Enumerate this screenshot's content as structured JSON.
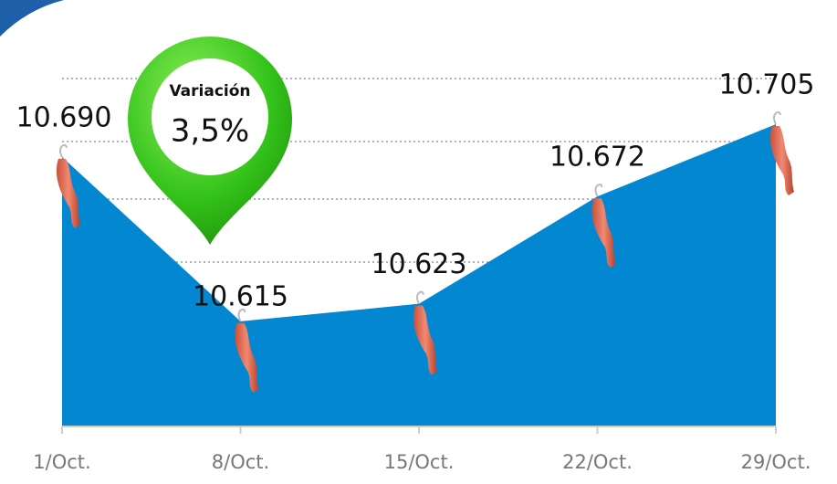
{
  "chart_data": {
    "type": "area",
    "categories": [
      "1/Oct.",
      "8/Oct.",
      "15/Oct.",
      "22/Oct.",
      "29/Oct."
    ],
    "values": [
      10690,
      10615,
      10623,
      10672,
      10705
    ],
    "value_labels": [
      "10.690",
      "10.615",
      "10.623",
      "10.672",
      "10.705"
    ],
    "color": "#0287d0",
    "ylim": [
      10567,
      10760
    ],
    "annotation": {
      "title": "Variación",
      "text": "3,5%"
    }
  }
}
